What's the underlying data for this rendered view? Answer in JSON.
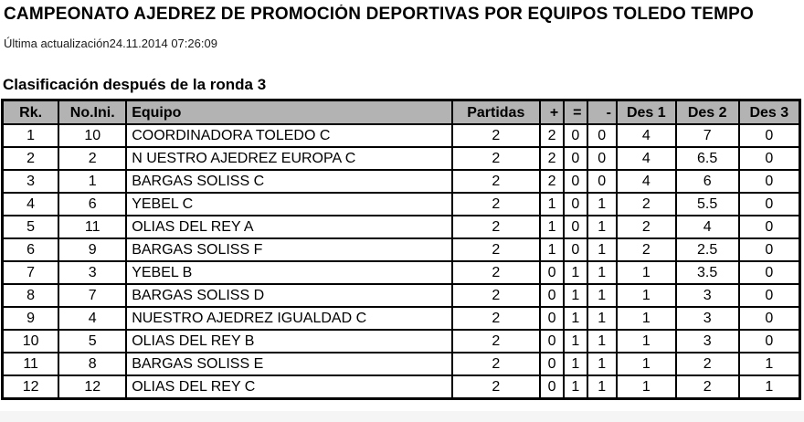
{
  "page": {
    "title": "CAMPEONATO AJEDREZ DE PROMOCIÓN DEPORTIVAS POR EQUIPOS TOLEDO TEMPO",
    "last_update_label": "Última actualización",
    "last_update_value": "24.11.2014 07:26:09",
    "section_heading": "Clasificación después de la ronda 3"
  },
  "table": {
    "columns": [
      "Rk.",
      "No.Ini.",
      "Equipo",
      "Partidas",
      "+",
      "=",
      "-",
      "Des 1",
      "Des 2",
      "Des 3"
    ],
    "column_keys": [
      "rank",
      "start-number",
      "team",
      "games",
      "wins",
      "draws",
      "losses",
      "tiebreak-1",
      "tiebreak-2",
      "tiebreak-3"
    ],
    "rows": [
      [
        "1",
        "10",
        "COORDINADORA TOLEDO C",
        "2",
        "2",
        "0",
        "0",
        "4",
        "7",
        "0"
      ],
      [
        "2",
        "2",
        "N UESTRO AJEDREZ EUROPA C",
        "2",
        "2",
        "0",
        "0",
        "4",
        "6.5",
        "0"
      ],
      [
        "3",
        "1",
        "BARGAS SOLISS C",
        "2",
        "2",
        "0",
        "0",
        "4",
        "6",
        "0"
      ],
      [
        "4",
        "6",
        "YEBEL C",
        "2",
        "1",
        "0",
        "1",
        "2",
        "5.5",
        "0"
      ],
      [
        "5",
        "11",
        "OLIAS DEL REY A",
        "2",
        "1",
        "0",
        "1",
        "2",
        "4",
        "0"
      ],
      [
        "6",
        "9",
        "BARGAS SOLISS F",
        "2",
        "1",
        "0",
        "1",
        "2",
        "2.5",
        "0"
      ],
      [
        "7",
        "3",
        "YEBEL B",
        "2",
        "0",
        "1",
        "1",
        "1",
        "3.5",
        "0"
      ],
      [
        "8",
        "7",
        "BARGAS SOLISS D",
        "2",
        "0",
        "1",
        "1",
        "1",
        "3",
        "0"
      ],
      [
        "9",
        "4",
        "NUESTRO AJEDREZ IGUALDAD C",
        "2",
        "0",
        "1",
        "1",
        "1",
        "3",
        "0"
      ],
      [
        "10",
        "5",
        "OLIAS DEL REY B",
        "2",
        "0",
        "1",
        "1",
        "1",
        "3",
        "0"
      ],
      [
        "11",
        "8",
        "BARGAS SOLISS E",
        "2",
        "0",
        "1",
        "1",
        "1",
        "2",
        "1"
      ],
      [
        "12",
        "12",
        "OLIAS DEL REY C",
        "2",
        "0",
        "1",
        "1",
        "1",
        "2",
        "1"
      ]
    ]
  },
  "colors": {
    "header_bg": "#b3b3b3",
    "border": "#000000",
    "row_bg": "#ffffff",
    "page_bg": "#ffffff"
  }
}
